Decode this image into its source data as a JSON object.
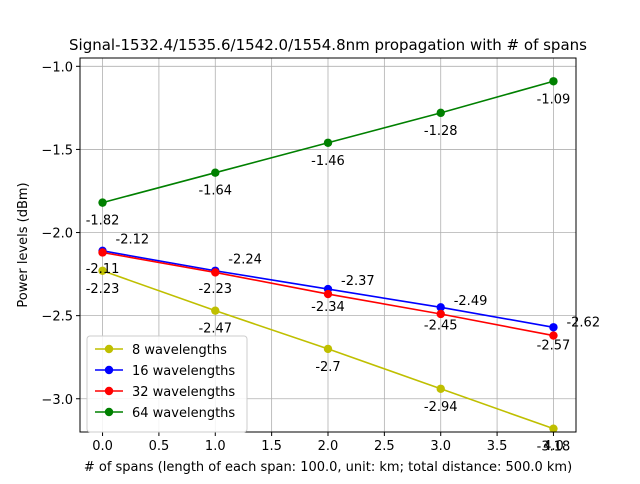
{
  "chart_data": {
    "type": "line",
    "title": "Signal-1532.4/1535.6/1542.0/1554.8nm propagation with # of spans",
    "xlabel": "# of spans (length of each span: 100.0, unit: km; total distance: 500.0 km)",
    "ylabel": "Power levels (dBm)",
    "x": [
      0,
      1,
      2,
      3,
      4
    ],
    "xlim": [
      -0.2,
      4.2
    ],
    "ylim": [
      -3.2,
      -0.95
    ],
    "xticks": [
      0.0,
      0.5,
      1.0,
      1.5,
      2.0,
      2.5,
      3.0,
      3.5,
      4.0
    ],
    "xtick_labels": [
      "0.0",
      "0.5",
      "1.0",
      "1.5",
      "2.0",
      "2.5",
      "3.0",
      "3.5",
      "4.0"
    ],
    "yticks": [
      -3.0,
      -2.5,
      -2.0,
      -1.5,
      -1.0
    ],
    "ytick_labels": [
      "−3.0",
      "−2.5",
      "−2.0",
      "−1.5",
      "−1.0"
    ],
    "grid": true,
    "legend_position": "lower-left",
    "series": [
      {
        "name": "8 wavelengths",
        "color": "#bfbf00",
        "values": [
          -2.23,
          -2.47,
          -2.7,
          -2.94,
          -3.18
        ],
        "labels": [
          "-2.23",
          "-2.47",
          "-2.7",
          "-2.94",
          "-3.18"
        ]
      },
      {
        "name": "16 wavelengths",
        "color": "#0000ff",
        "values": [
          -2.11,
          -2.23,
          -2.34,
          -2.45,
          -2.57
        ],
        "labels": [
          "-2.11",
          "-2.23",
          "-2.34",
          "-2.45",
          "-2.57"
        ]
      },
      {
        "name": "32 wavelengths",
        "color": "#ff0000",
        "values": [
          -2.12,
          -2.24,
          -2.37,
          -2.49,
          -2.62
        ],
        "labels": [
          "-2.12",
          "-2.24",
          "-2.37",
          "-2.49",
          "-2.62"
        ]
      },
      {
        "name": "64 wavelengths",
        "color": "#008000",
        "values": [
          -1.82,
          -1.64,
          -1.46,
          -1.28,
          -1.09
        ],
        "labels": [
          "-1.82",
          "-1.64",
          "-1.46",
          "-1.28",
          "-1.09"
        ]
      }
    ]
  }
}
